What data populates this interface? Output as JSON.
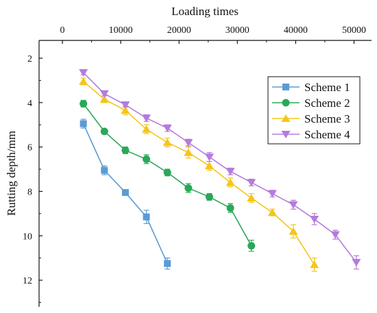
{
  "chart_data": {
    "type": "line",
    "title": "",
    "xlabel": "Loading times",
    "ylabel": "Rutting depth/mm",
    "x_axis_position": "top",
    "y_inverted": true,
    "xlim": [
      -4000,
      53000
    ],
    "ylim": [
      1.2,
      13.2
    ],
    "x_ticks": [
      0,
      10000,
      20000,
      30000,
      40000,
      50000
    ],
    "x_tick_labels": [
      "0",
      "10000",
      "20000",
      "30000",
      "40000",
      "50000"
    ],
    "y_ticks": [
      2,
      4,
      6,
      8,
      10,
      12
    ],
    "y_tick_labels": [
      "2",
      "4",
      "6",
      "8",
      "10",
      "12"
    ],
    "grid": false,
    "legend_position": "top-right",
    "error_bars": true,
    "series": [
      {
        "name": "Scheme 1",
        "color": "#5b9bd5",
        "marker": "square",
        "x": [
          3600,
          7200,
          10800,
          14400,
          18000
        ],
        "y": [
          4.95,
          7.05,
          8.05,
          9.15,
          11.25
        ],
        "err": [
          0.2,
          0.2,
          0.1,
          0.3,
          0.25
        ]
      },
      {
        "name": "Scheme 2",
        "color": "#2aa858",
        "marker": "circle",
        "x": [
          3600,
          7200,
          10800,
          14400,
          18000,
          21600,
          25200,
          28800,
          32400
        ],
        "y": [
          4.05,
          5.3,
          6.15,
          6.55,
          7.15,
          7.85,
          8.25,
          8.75,
          10.45
        ],
        "err": [
          0.15,
          0.1,
          0.15,
          0.2,
          0.15,
          0.2,
          0.15,
          0.2,
          0.25
        ]
      },
      {
        "name": "Scheme 3",
        "color": "#f5c518",
        "marker": "triangle-up",
        "x": [
          3600,
          7200,
          10800,
          14400,
          18000,
          21600,
          25200,
          28800,
          32400,
          36000,
          39600,
          43200
        ],
        "y": [
          3.05,
          3.85,
          4.35,
          5.2,
          5.8,
          6.25,
          6.85,
          7.6,
          8.3,
          8.95,
          9.8,
          11.3
        ],
        "err": [
          0.15,
          0.15,
          0.2,
          0.2,
          0.2,
          0.25,
          0.2,
          0.2,
          0.2,
          0.15,
          0.3,
          0.3
        ]
      },
      {
        "name": "Scheme 4",
        "color": "#b57bdb",
        "marker": "triangle-down",
        "x": [
          3600,
          7200,
          10800,
          14400,
          18000,
          21600,
          25200,
          28800,
          32400,
          36000,
          39600,
          43200,
          46800,
          50400
        ],
        "y": [
          2.65,
          3.6,
          4.1,
          4.7,
          5.15,
          5.8,
          6.45,
          7.1,
          7.6,
          8.1,
          8.6,
          9.25,
          9.95,
          11.2
        ],
        "err": [
          0.1,
          0.1,
          0.1,
          0.15,
          0.15,
          0.15,
          0.2,
          0.15,
          0.15,
          0.15,
          0.2,
          0.25,
          0.2,
          0.3
        ]
      }
    ]
  }
}
